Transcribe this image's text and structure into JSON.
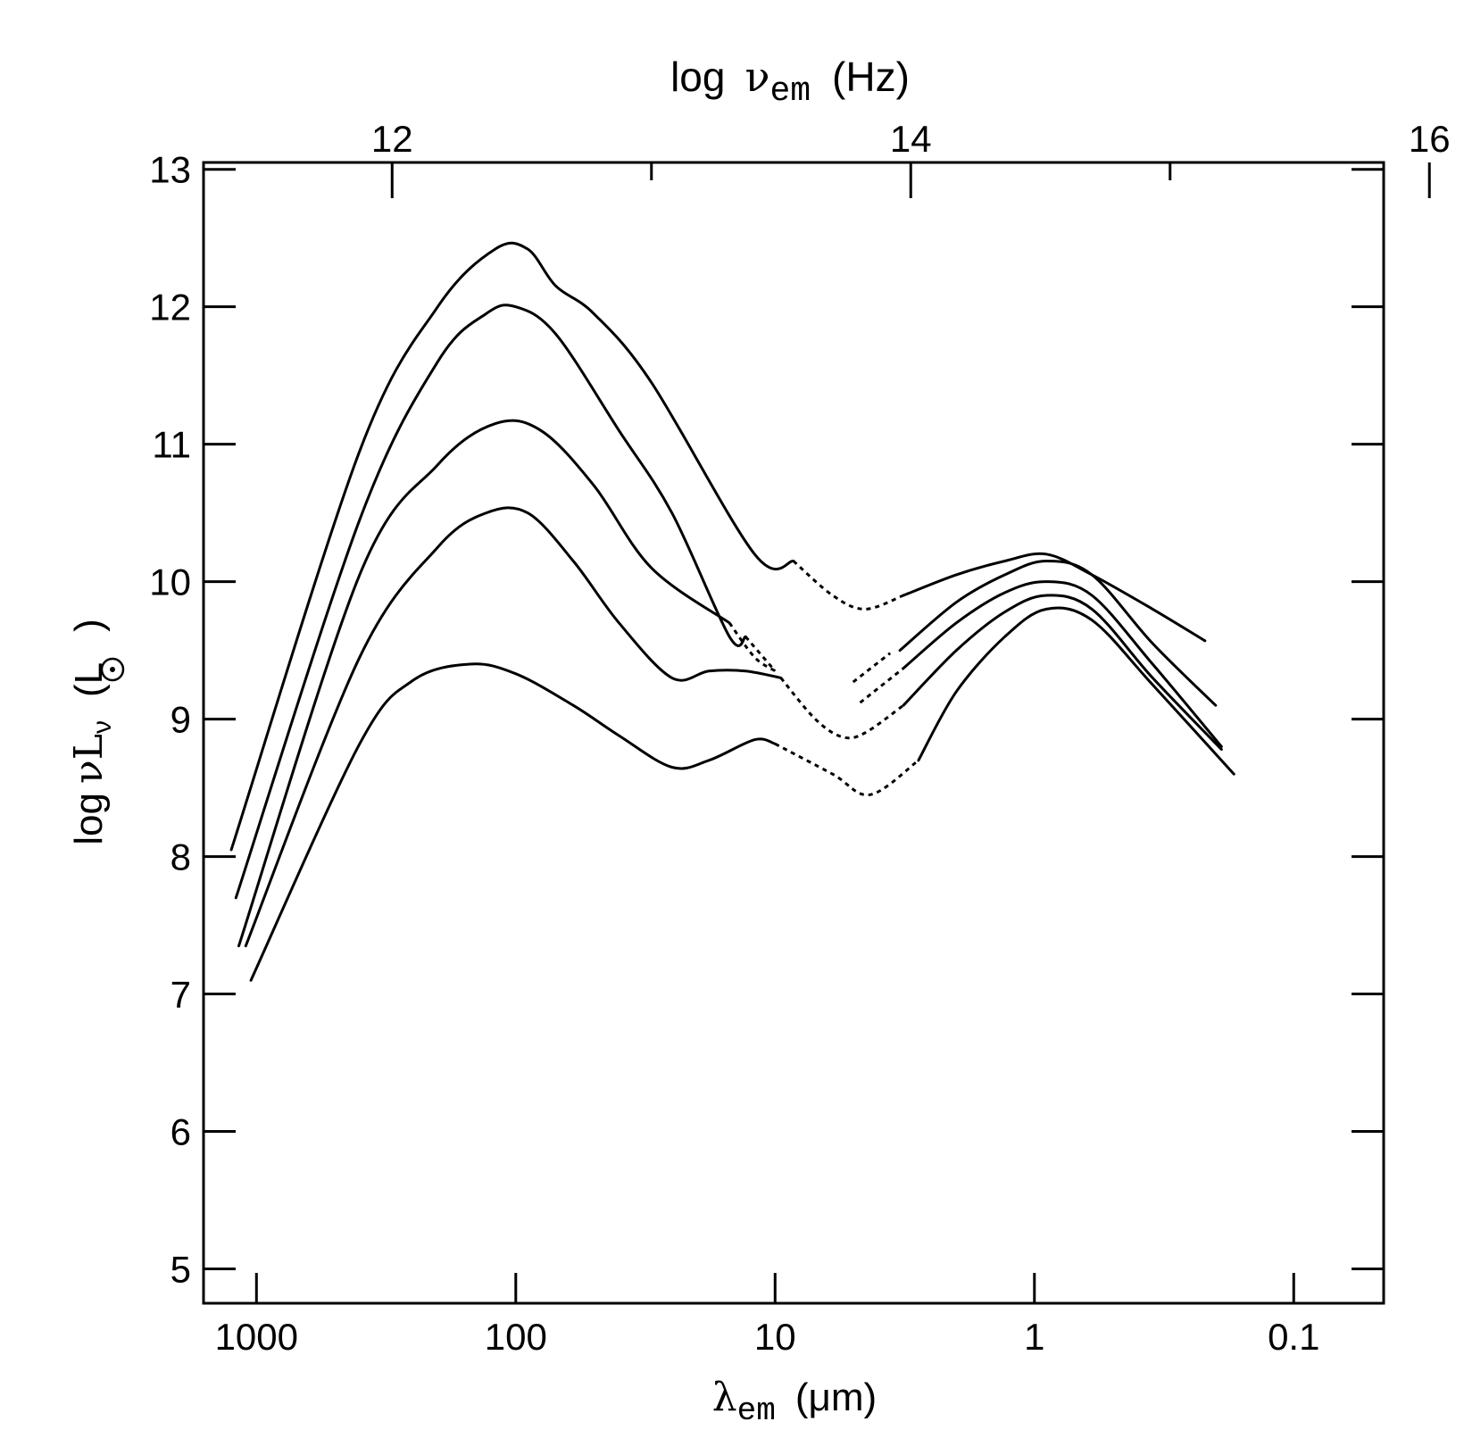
{
  "chart_data": {
    "type": "line",
    "title": "",
    "xlabel": {
      "symbol": "λ",
      "sub": "em",
      "unit": "(μm)"
    },
    "x2label": {
      "prefix": "log",
      "symbol": "ν",
      "sub": "em",
      "unit": "(Hz)"
    },
    "ylabel": {
      "prefix": "log",
      "symbol": "νL",
      "sub": "ν",
      "unit_open": "(L",
      "unit_close": ")"
    },
    "xscale": "log-reversed",
    "xlim": [
      1600,
      0.045
    ],
    "ylim": [
      4.75,
      13.05
    ],
    "x_ticks": [
      {
        "value": 1000,
        "label": "1000"
      },
      {
        "value": 100,
        "label": "100"
      },
      {
        "value": 10,
        "label": "10"
      },
      {
        "value": 1,
        "label": "1"
      },
      {
        "value": 0.1,
        "label": "0.1"
      }
    ],
    "x2_ticks": [
      {
        "value": 12,
        "label": "12"
      },
      {
        "value": 13,
        "label": ""
      },
      {
        "value": 14,
        "label": "14"
      },
      {
        "value": 15,
        "label": ""
      },
      {
        "value": 16,
        "label": "16"
      }
    ],
    "y_ticks": [
      5,
      6,
      7,
      8,
      9,
      10,
      11,
      12,
      13
    ],
    "y_tick_labels": [
      "5",
      "6",
      "7",
      "8",
      "9",
      "10",
      "11",
      "12",
      "13"
    ],
    "grid": false,
    "legend": "none",
    "colors": {
      "line": "#000000",
      "axes": "#000000",
      "background": "#ffffff"
    },
    "series": [
      {
        "solid": [
          [
            [
              1250,
              8.05
            ],
            [
              400,
              10.95
            ],
            [
              200,
              12.0
            ],
            [
              120,
              12.42
            ],
            [
              90,
              12.42
            ],
            [
              70,
              12.15
            ],
            [
              50,
              11.95
            ],
            [
              30,
              11.45
            ],
            [
              12,
              10.2
            ],
            [
              8.5,
              10.15
            ]
          ],
          [
            [
              3.2,
              9.9
            ],
            [
              2,
              10.05
            ],
            [
              1.3,
              10.15
            ],
            [
              0.9,
              10.2
            ],
            [
              0.6,
              10.05
            ],
            [
              0.35,
              9.8
            ],
            [
              0.22,
              9.57
            ]
          ]
        ],
        "dashed": [
          [
            [
              8.5,
              10.15
            ],
            [
              6,
              9.9
            ],
            [
              4.5,
              9.8
            ],
            [
              3.2,
              9.9
            ]
          ]
        ]
      },
      {
        "solid": [
          [
            [
              1200,
              7.7
            ],
            [
              400,
              10.45
            ],
            [
              200,
              11.6
            ],
            [
              130,
              11.95
            ],
            [
              100,
              12.0
            ],
            [
              70,
              11.8
            ],
            [
              40,
              11.1
            ],
            [
              25,
              10.5
            ],
            [
              15,
              9.6
            ],
            [
              13,
              9.6
            ]
          ],
          [
            [
              3.3,
              9.5
            ],
            [
              2,
              9.85
            ],
            [
              1.3,
              10.05
            ],
            [
              0.9,
              10.15
            ],
            [
              0.6,
              10.05
            ],
            [
              0.35,
              9.55
            ],
            [
              0.2,
              9.1
            ]
          ]
        ],
        "dashed": [
          [
            [
              13,
              9.6
            ],
            [
              10,
              9.35
            ]
          ],
          [
            [
              5,
              9.27
            ],
            [
              3.6,
              9.48
            ]
          ]
        ]
      },
      {
        "solid": [
          [
            [
              1170,
              7.35
            ],
            [
              400,
              10.05
            ],
            [
              200,
              10.85
            ],
            [
              120,
              11.15
            ],
            [
              80,
              11.1
            ],
            [
              50,
              10.7
            ],
            [
              30,
              10.1
            ],
            [
              15,
              9.7
            ]
          ],
          [
            [
              3.2,
              9.37
            ],
            [
              2,
              9.7
            ],
            [
              1.3,
              9.92
            ],
            [
              0.9,
              10.0
            ],
            [
              0.6,
              9.9
            ],
            [
              0.35,
              9.4
            ],
            [
              0.19,
              8.8
            ]
          ]
        ],
        "dashed": [
          [
            [
              15,
              9.7
            ],
            [
              12,
              9.45
            ],
            [
              10,
              9.35
            ]
          ],
          [
            [
              4.7,
              9.12
            ],
            [
              3.2,
              9.37
            ]
          ]
        ]
      },
      {
        "solid": [
          [
            [
              1100,
              7.35
            ],
            [
              400,
              9.45
            ],
            [
              200,
              10.25
            ],
            [
              130,
              10.5
            ],
            [
              90,
              10.5
            ],
            [
              60,
              10.15
            ],
            [
              40,
              9.7
            ],
            [
              25,
              9.3
            ],
            [
              18,
              9.35
            ],
            [
              13,
              9.35
            ],
            [
              9.5,
              9.3
            ]
          ],
          [
            [
              3.2,
              9.1
            ],
            [
              2,
              9.5
            ],
            [
              1.3,
              9.78
            ],
            [
              0.9,
              9.9
            ],
            [
              0.6,
              9.8
            ],
            [
              0.35,
              9.3
            ],
            [
              0.19,
              8.78
            ]
          ]
        ],
        "dashed": [
          [
            [
              9.5,
              9.3
            ],
            [
              7,
              9.0
            ],
            [
              5.5,
              8.87
            ],
            [
              4.5,
              8.9
            ],
            [
              3.2,
              9.1
            ]
          ]
        ]
      },
      {
        "solid": [
          [
            [
              1050,
              7.1
            ],
            [
              400,
              8.82
            ],
            [
              250,
              9.28
            ],
            [
              150,
              9.4
            ],
            [
              100,
              9.33
            ],
            [
              60,
              9.1
            ],
            [
              40,
              8.88
            ],
            [
              25,
              8.65
            ],
            [
              18,
              8.7
            ],
            [
              12,
              8.85
            ],
            [
              10,
              8.82
            ]
          ],
          [
            [
              2.8,
              8.7
            ],
            [
              2,
              9.2
            ],
            [
              1.3,
              9.6
            ],
            [
              0.9,
              9.8
            ],
            [
              0.6,
              9.72
            ],
            [
              0.35,
              9.25
            ],
            [
              0.17,
              8.6
            ]
          ]
        ],
        "dashed": [
          [
            [
              10,
              8.82
            ],
            [
              6,
              8.6
            ],
            [
              4.3,
              8.45
            ],
            [
              2.8,
              8.7
            ]
          ]
        ]
      }
    ]
  }
}
